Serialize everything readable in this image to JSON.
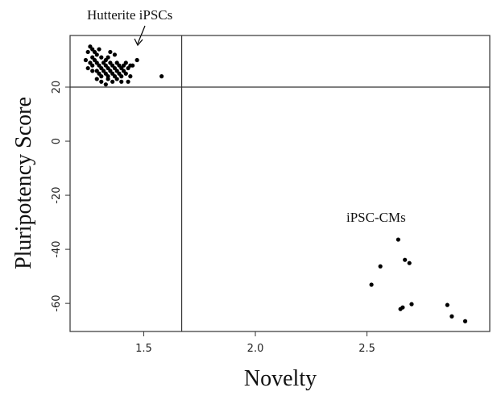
{
  "chart_data": {
    "type": "scatter",
    "xlabel": "Novelty",
    "ylabel": "Pluripotency Score",
    "annotations": [
      "Hutterite iPSCs",
      "iPSC-CMs"
    ],
    "color": "#000000",
    "xlim": [
      1.17,
      3.05
    ],
    "ylim": [
      -70.4,
      39.1
    ],
    "xticks": [
      1.5,
      2.0,
      2.5
    ],
    "yticks": [
      -60,
      -40,
      -20,
      0,
      20
    ],
    "xtick_labels": [
      "1.5",
      "2.0",
      "2.5"
    ],
    "vlines": [
      1.67
    ],
    "hlines": [
      20
    ],
    "x": [
      1.25,
      1.26,
      1.27,
      1.28,
      1.29,
      1.3,
      1.31,
      1.33,
      1.35,
      1.37,
      1.24,
      1.26,
      1.27,
      1.28,
      1.29,
      1.3,
      1.31,
      1.32,
      1.33,
      1.34,
      1.35,
      1.36,
      1.37,
      1.38,
      1.39,
      1.4,
      1.41,
      1.42,
      1.43,
      1.44,
      1.25,
      1.27,
      1.29,
      1.3,
      1.31,
      1.32,
      1.33,
      1.34,
      1.35,
      1.36,
      1.37,
      1.38,
      1.39,
      1.4,
      1.41,
      1.42,
      1.29,
      1.31,
      1.33,
      1.34,
      1.36,
      1.38,
      1.4,
      1.43,
      1.44,
      1.45,
      1.27,
      1.34,
      1.47,
      1.58,
      2.52,
      2.56,
      2.64,
      2.67,
      2.69,
      2.66,
      2.65,
      2.7,
      2.86,
      2.88,
      2.94
    ],
    "values": [
      33,
      35,
      34,
      33,
      32,
      34,
      31,
      30,
      33,
      32,
      30,
      29,
      28,
      30,
      29,
      28,
      27,
      29,
      28,
      27,
      29,
      28,
      27,
      29,
      28,
      27,
      28,
      29,
      27,
      28,
      27,
      26,
      26,
      25,
      24,
      26,
      25,
      24,
      26,
      25,
      24,
      26,
      25,
      24,
      26,
      25,
      23,
      22,
      21,
      23,
      22,
      23,
      22,
      22,
      24,
      28,
      31,
      31,
      30,
      24,
      -53.1,
      -46.3,
      -36.4,
      -43.9,
      -45.1,
      -61.5,
      -62.1,
      -60.3,
      -60.6,
      -64.8,
      -66.6
    ]
  }
}
